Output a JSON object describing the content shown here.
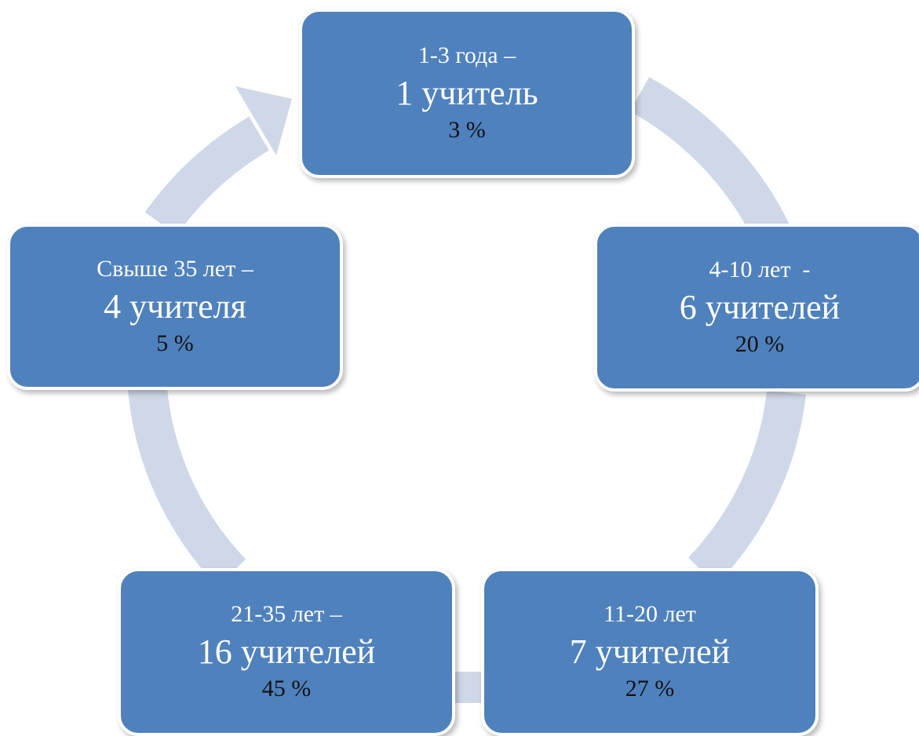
{
  "colors": {
    "node_fill": "#4f81bd",
    "node_border": "#ffffff",
    "arrow_ring": "#cfd8e8",
    "percent_text": "#111111",
    "label_text": "#ffffff"
  },
  "nodes": [
    {
      "range": "1-3 года –",
      "count": "1 учитель",
      "percent": "3 %"
    },
    {
      "range": "4-10 лет  -",
      "count": "6 учителей",
      "percent": "20 %"
    },
    {
      "range": "11-20 лет",
      "count": "7 учителей",
      "percent": "27 %"
    },
    {
      "range": "21-35 лет –",
      "count": "16 учителей",
      "percent": "45 %"
    },
    {
      "range": "Свыше 35 лет –",
      "count": "4 учителя",
      "percent": "5 %"
    }
  ]
}
